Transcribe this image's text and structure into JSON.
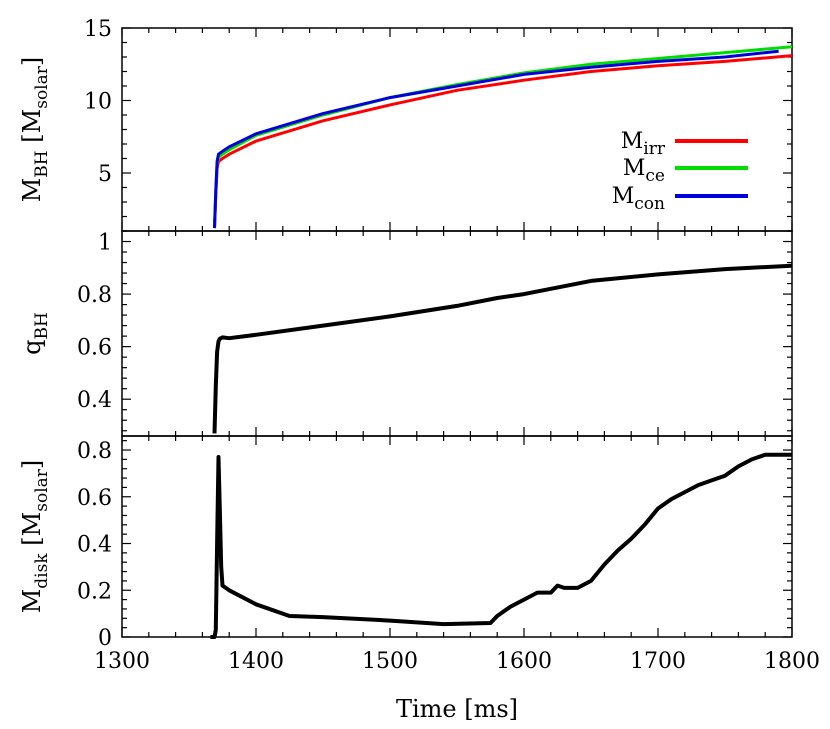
{
  "chart_data": [
    {
      "type": "line",
      "panel": "top",
      "ylabel": {
        "main": "M",
        "sub": "BH",
        "bracket_open": " [M",
        "bracket_sub": "solar",
        "bracket_close": "]"
      },
      "xlim": [
        1300,
        1800
      ],
      "ylim": [
        1,
        15
      ],
      "yticks": [
        5,
        10,
        15
      ],
      "legend": "right",
      "series": [
        {
          "name_main": "M",
          "name_sub": "irr",
          "color": "#ff0000",
          "x": [
            1369,
            1370,
            1371,
            1372,
            1375,
            1380,
            1400,
            1450,
            1500,
            1550,
            1600,
            1650,
            1700,
            1750,
            1800
          ],
          "y": [
            1.2,
            3.5,
            5.3,
            5.8,
            6.0,
            6.3,
            7.2,
            8.6,
            9.7,
            10.7,
            11.4,
            12.0,
            12.4,
            12.7,
            13.1
          ]
        },
        {
          "name_main": "M",
          "name_sub": "ce",
          "color": "#00dd00",
          "x": [
            1369,
            1370,
            1371,
            1372,
            1375,
            1380,
            1400,
            1450,
            1500,
            1550,
            1600,
            1650,
            1700,
            1750,
            1800
          ],
          "y": [
            1.2,
            3.7,
            5.6,
            6.1,
            6.3,
            6.6,
            7.6,
            9.0,
            10.2,
            11.1,
            11.9,
            12.5,
            12.9,
            13.3,
            13.7
          ]
        },
        {
          "name_main": "M",
          "name_sub": "con",
          "color": "#0000dd",
          "x": [
            1369,
            1370,
            1371,
            1372,
            1375,
            1380,
            1400,
            1450,
            1500,
            1550,
            1600,
            1650,
            1700,
            1750,
            1790
          ],
          "y": [
            1.2,
            3.8,
            5.8,
            6.3,
            6.5,
            6.8,
            7.7,
            9.1,
            10.2,
            11.0,
            11.8,
            12.3,
            12.7,
            13.0,
            13.4
          ]
        }
      ]
    },
    {
      "type": "line",
      "panel": "middle",
      "ylabel": {
        "main": "q",
        "sub": "BH"
      },
      "xlim": [
        1300,
        1800
      ],
      "ylim": [
        0.26,
        1.04
      ],
      "yticks": [
        0.4,
        0.6,
        0.8,
        1
      ],
      "series": [
        {
          "color": "#000000",
          "x": [
            1369,
            1370,
            1371,
            1372,
            1373,
            1375,
            1380,
            1400,
            1450,
            1500,
            1550,
            1580,
            1600,
            1650,
            1700,
            1750,
            1800
          ],
          "y": [
            0.27,
            0.45,
            0.58,
            0.62,
            0.63,
            0.635,
            0.632,
            0.645,
            0.68,
            0.715,
            0.755,
            0.785,
            0.8,
            0.85,
            0.875,
            0.895,
            0.908
          ]
        }
      ]
    },
    {
      "type": "line",
      "panel": "bottom",
      "xlabel": "Time [ms]",
      "ylabel": {
        "main": "M",
        "sub": "disk",
        "bracket_open": " [M",
        "bracket_sub": "solar",
        "bracket_close": "]"
      },
      "xlim": [
        1300,
        1800
      ],
      "ylim": [
        0,
        0.86
      ],
      "yticks": [
        0,
        0.2,
        0.4,
        0.6,
        0.8
      ],
      "xticks": [
        1300,
        1400,
        1500,
        1600,
        1700,
        1800
      ],
      "series": [
        {
          "color": "#000000",
          "x": [
            1366,
            1369,
            1370,
            1371,
            1372,
            1373,
            1374,
            1375,
            1380,
            1400,
            1425,
            1450,
            1500,
            1540,
            1575,
            1580,
            1590,
            1600,
            1610,
            1620,
            1625,
            1630,
            1640,
            1650,
            1660,
            1670,
            1680,
            1690,
            1700,
            1710,
            1720,
            1730,
            1740,
            1750,
            1760,
            1770,
            1780,
            1790,
            1800
          ],
          "y": [
            0,
            0,
            0.03,
            0.4,
            0.77,
            0.55,
            0.3,
            0.22,
            0.2,
            0.14,
            0.09,
            0.085,
            0.07,
            0.055,
            0.06,
            0.09,
            0.13,
            0.16,
            0.19,
            0.19,
            0.22,
            0.21,
            0.21,
            0.24,
            0.31,
            0.37,
            0.42,
            0.48,
            0.55,
            0.59,
            0.62,
            0.65,
            0.67,
            0.69,
            0.73,
            0.76,
            0.78,
            0.78,
            0.78
          ]
        }
      ]
    }
  ]
}
